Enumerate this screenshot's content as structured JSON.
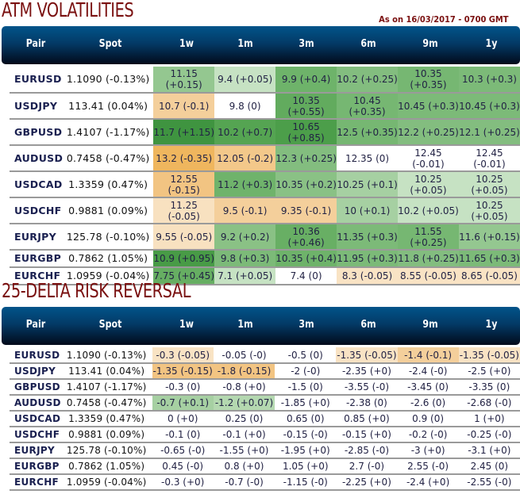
{
  "atm": {
    "title": "ATM VOLATILITIES",
    "as_of": "As on 16/03/2017 - 0700 GMT",
    "columns": [
      "Pair",
      "Spot",
      "1w",
      "1m",
      "3m",
      "6m",
      "9m",
      "1y"
    ],
    "rows": [
      {
        "pair": "EURUSD",
        "spot": "1.1090 (-0.13%)",
        "cells": [
          {
            "v": "11.15 (+0.15)",
            "c": "#94c790"
          },
          {
            "v": "9.4 (+0.05)",
            "c": "#c6e2c3"
          },
          {
            "v": "9.9 (+0.4)",
            "c": "#6eb36a"
          },
          {
            "v": "10.2 (+0.25)",
            "c": "#83bd7f"
          },
          {
            "v": "10.35 (+0.35)",
            "c": "#76b772"
          },
          {
            "v": "10.3 (+0.3)",
            "c": "#7cba78"
          }
        ]
      },
      {
        "pair": "USDJPY",
        "spot": "113.41 (0.04%)",
        "cells": [
          {
            "v": "10.7 (-0.1)",
            "c": "#f4cf9b"
          },
          {
            "v": "9.8 (0)",
            "c": "#ffffff"
          },
          {
            "v": "10.35 (+0.55)",
            "c": "#62ab5e"
          },
          {
            "v": "10.45 (+0.35)",
            "c": "#76b772"
          },
          {
            "v": "10.45 (+0.3)",
            "c": "#7cba78"
          },
          {
            "v": "10.45 (+0.3)",
            "c": "#7cba78"
          }
        ]
      },
      {
        "pair": "GBPUSD",
        "spot": "1.4107 (-1.17%)",
        "cells": [
          {
            "v": "11.7 (+1.15)",
            "c": "#3f9440"
          },
          {
            "v": "10.2 (+0.7)",
            "c": "#55a452"
          },
          {
            "v": "10.65 (+0.85)",
            "c": "#4c9e4a"
          },
          {
            "v": "12.5 (+0.35)",
            "c": "#76b772"
          },
          {
            "v": "12.2 (+0.25)",
            "c": "#83bd7f"
          },
          {
            "v": "12.1 (+0.25)",
            "c": "#83bd7f"
          }
        ]
      },
      {
        "pair": "AUDUSD",
        "spot": "0.7458 (-0.47%)",
        "cells": [
          {
            "v": "13.2 (-0.35)",
            "c": "#efb65e"
          },
          {
            "v": "12.05 (-0.2)",
            "c": "#f3c88a"
          },
          {
            "v": "12.3 (+0.25)",
            "c": "#83bd7f"
          },
          {
            "v": "12.35 (0)",
            "c": "#ffffff"
          },
          {
            "v": "12.45 (-0.01)",
            "c": "#ffffff"
          },
          {
            "v": "12.45 (-0.01)",
            "c": "#ffffff"
          }
        ]
      },
      {
        "pair": "USDCAD",
        "spot": "1.3359 (0.47%)",
        "cells": [
          {
            "v": "12.55 (-0.15)",
            "c": "#f2c482"
          },
          {
            "v": "11.2 (+0.3)",
            "c": "#6fb36b"
          },
          {
            "v": "10.35 (+0.2)",
            "c": "#8ac185"
          },
          {
            "v": "10.25 (+0.1)",
            "c": "#a6d0a2"
          },
          {
            "v": "10.25 (+0.05)",
            "c": "#c6e2c3"
          },
          {
            "v": "10.25 (+0.05)",
            "c": "#c6e2c3"
          }
        ]
      },
      {
        "pair": "USDCHF",
        "spot": "0.9881 (0.09%)",
        "cells": [
          {
            "v": "11.25 (-0.05)",
            "c": "#f8e1c0"
          },
          {
            "v": "9.5 (-0.1)",
            "c": "#f4cf9b"
          },
          {
            "v": "9.35 (-0.1)",
            "c": "#f4cf9b"
          },
          {
            "v": "10 (+0.1)",
            "c": "#a6d0a2"
          },
          {
            "v": "10.2 (+0.05)",
            "c": "#c6e2c3"
          },
          {
            "v": "10.25 (+0.05)",
            "c": "#c6e2c3"
          }
        ]
      },
      {
        "pair": "EURJPY",
        "spot": "125.78 (-0.10%)",
        "cells": [
          {
            "v": "9.55 (-0.05)",
            "c": "#f8e1c0"
          },
          {
            "v": "9.2 (+0.2)",
            "c": "#8ac185"
          },
          {
            "v": "10.36 (+0.46)",
            "c": "#68af64"
          },
          {
            "v": "11.35 (+0.3)",
            "c": "#7cba78"
          },
          {
            "v": "11.55 (+0.25)",
            "c": "#76b772"
          },
          {
            "v": "11.6 (+0.15)",
            "c": "#94c790"
          }
        ]
      },
      {
        "pair": "EURGBP",
        "spot": "0.7862 (1.05%)",
        "cells": [
          {
            "v": "10.9 (+0.95)",
            "c": "#489b46"
          },
          {
            "v": "9.8 (+0.3)",
            "c": "#7cba78"
          },
          {
            "v": "10.35 (+0.4)",
            "c": "#6eb36a"
          },
          {
            "v": "11.95 (+0.3)",
            "c": "#7cba78"
          },
          {
            "v": "11.8 (+0.25)",
            "c": "#83bd7f"
          },
          {
            "v": "11.65 (+0.3)",
            "c": "#7cba78"
          }
        ]
      },
      {
        "pair": "EURCHF",
        "spot": "1.0959 (-0.04%)",
        "cells": [
          {
            "v": "7.75 (+0.45)",
            "c": "#66ae62"
          },
          {
            "v": "7.1 (+0.05)",
            "c": "#c6e2c3"
          },
          {
            "v": "7.4 (0)",
            "c": "#ffffff"
          },
          {
            "v": "8.3 (-0.05)",
            "c": "#f9e3c4"
          },
          {
            "v": "8.55 (-0.05)",
            "c": "#f9e3c4"
          },
          {
            "v": "8.65 (-0.05)",
            "c": "#f9e3c4"
          }
        ]
      }
    ]
  },
  "rr": {
    "title": "25-DELTA RISK REVERSAL",
    "columns": [
      "Pair",
      "Spot",
      "1w",
      "1m",
      "3m",
      "6m",
      "9m",
      "1y"
    ],
    "rows": [
      {
        "pair": "EURUSD",
        "spot": "1.1090 (-0.13%)",
        "cells": [
          {
            "v": "-0.3 (-0.05)",
            "c": "#f9e3c4"
          },
          {
            "v": "-0.05 (-0)",
            "c": "#ffffff"
          },
          {
            "v": "-0.5 (0)",
            "c": "#ffffff"
          },
          {
            "v": "-1.35 (-0.05)",
            "c": "#f9e3c4"
          },
          {
            "v": "-1.4 (-0.1)",
            "c": "#f4cf9b"
          },
          {
            "v": "-1.35 (-0.05)",
            "c": "#f9e3c4"
          }
        ]
      },
      {
        "pair": "USDJPY",
        "spot": "113.41 (0.04%)",
        "cells": [
          {
            "v": "-1.35 (-0.15)",
            "c": "#f2c482"
          },
          {
            "v": "-1.8 (-0.15)",
            "c": "#f2c482"
          },
          {
            "v": "-2 (-0)",
            "c": "#ffffff"
          },
          {
            "v": "-2.35 (+0)",
            "c": "#ffffff"
          },
          {
            "v": "-2.4 (-0)",
            "c": "#ffffff"
          },
          {
            "v": "-2.5 (+0)",
            "c": "#ffffff"
          }
        ]
      },
      {
        "pair": "GBPUSD",
        "spot": "1.4107 (-1.17%)",
        "cells": [
          {
            "v": "-0.3 (0)",
            "c": "#ffffff"
          },
          {
            "v": "-0.8 (+0)",
            "c": "#ffffff"
          },
          {
            "v": "-1.5 (0)",
            "c": "#ffffff"
          },
          {
            "v": "-3.55 (-0)",
            "c": "#ffffff"
          },
          {
            "v": "-3.45 (0)",
            "c": "#ffffff"
          },
          {
            "v": "-3.35 (0)",
            "c": "#ffffff"
          }
        ]
      },
      {
        "pair": "AUDUSD",
        "spot": "0.7458 (-0.47%)",
        "cells": [
          {
            "v": "-0.7 (+0.1)",
            "c": "#a6d0a2"
          },
          {
            "v": "-1.2 (+0.07)",
            "c": "#b4d8b0"
          },
          {
            "v": "-1.85 (+0)",
            "c": "#ffffff"
          },
          {
            "v": "-2.38 (0)",
            "c": "#ffffff"
          },
          {
            "v": "-2.6 (0)",
            "c": "#ffffff"
          },
          {
            "v": "-2.68 (-0)",
            "c": "#ffffff"
          }
        ]
      },
      {
        "pair": "USDCAD",
        "spot": "1.3359 (0.47%)",
        "cells": [
          {
            "v": "0 (+0)",
            "c": "#ffffff"
          },
          {
            "v": "0.25 (0)",
            "c": "#ffffff"
          },
          {
            "v": "0.65 (0)",
            "c": "#ffffff"
          },
          {
            "v": "0.85 (+0)",
            "c": "#ffffff"
          },
          {
            "v": "0.9 (0)",
            "c": "#ffffff"
          },
          {
            "v": "1 (+0)",
            "c": "#ffffff"
          }
        ]
      },
      {
        "pair": "USDCHF",
        "spot": "0.9881 (0.09%)",
        "cells": [
          {
            "v": "-0.1 (0)",
            "c": "#ffffff"
          },
          {
            "v": "-0.1 (+0)",
            "c": "#ffffff"
          },
          {
            "v": "-0.15 (-0)",
            "c": "#ffffff"
          },
          {
            "v": "-0.15 (+0)",
            "c": "#ffffff"
          },
          {
            "v": "-0.2 (-0)",
            "c": "#ffffff"
          },
          {
            "v": "-0.25 (-0)",
            "c": "#ffffff"
          }
        ]
      },
      {
        "pair": "EURJPY",
        "spot": "125.78 (-0.10%)",
        "cells": [
          {
            "v": "-0.65 (-0)",
            "c": "#ffffff"
          },
          {
            "v": "-1.55 (+0)",
            "c": "#ffffff"
          },
          {
            "v": "-1.95 (+0)",
            "c": "#ffffff"
          },
          {
            "v": "-2.85 (-0)",
            "c": "#ffffff"
          },
          {
            "v": "-3 (+0)",
            "c": "#ffffff"
          },
          {
            "v": "-3.1 (+0)",
            "c": "#ffffff"
          }
        ]
      },
      {
        "pair": "EURGBP",
        "spot": "0.7862 (1.05%)",
        "cells": [
          {
            "v": "0.45 (-0)",
            "c": "#ffffff"
          },
          {
            "v": "0.8 (+0)",
            "c": "#ffffff"
          },
          {
            "v": "1.05 (+0)",
            "c": "#ffffff"
          },
          {
            "v": "2.7 (-0)",
            "c": "#ffffff"
          },
          {
            "v": "2.55 (-0)",
            "c": "#ffffff"
          },
          {
            "v": "2.45 (0)",
            "c": "#ffffff"
          }
        ]
      },
      {
        "pair": "EURCHF",
        "spot": "1.0959 (-0.04%)",
        "cells": [
          {
            "v": "-0.3 (+0)",
            "c": "#ffffff"
          },
          {
            "v": "-0.7 (-0)",
            "c": "#ffffff"
          },
          {
            "v": "-1.15 (-0)",
            "c": "#ffffff"
          },
          {
            "v": "-2.25 (+0)",
            "c": "#ffffff"
          },
          {
            "v": "-2.4 (+0)",
            "c": "#ffffff"
          },
          {
            "v": "-2.55 (-0)",
            "c": "#ffffff"
          }
        ]
      }
    ]
  }
}
